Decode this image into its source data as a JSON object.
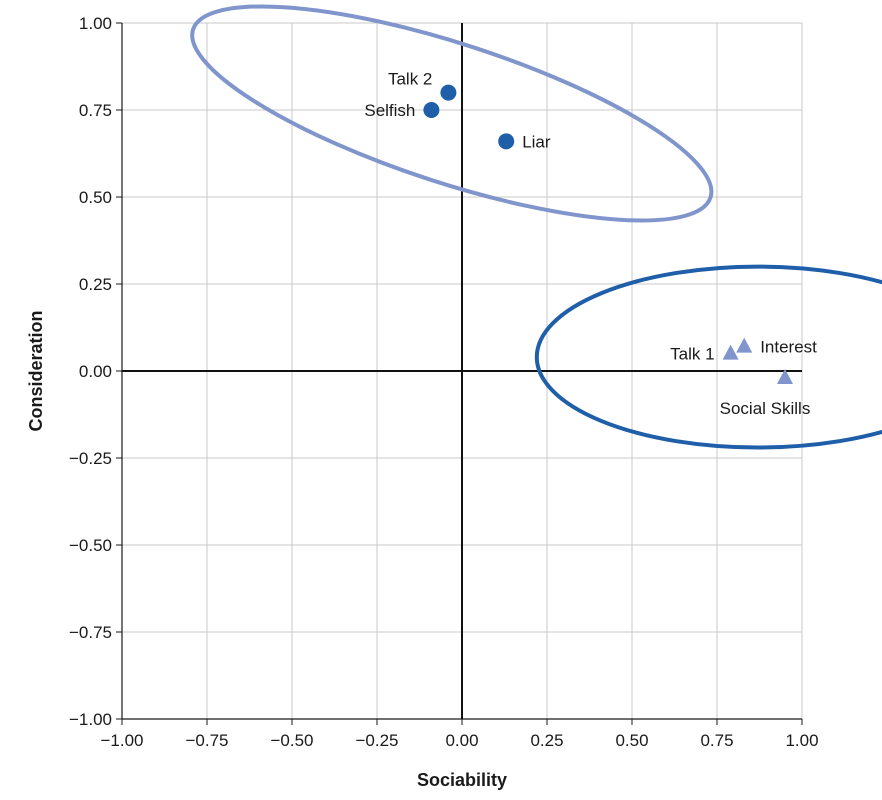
{
  "chart_data": {
    "type": "scatter",
    "title": "",
    "xlabel": "Sociability",
    "ylabel": "Consideration",
    "xlim": [
      -1.0,
      1.0
    ],
    "ylim": [
      -1.0,
      1.0
    ],
    "grid": true,
    "xticks": [
      -1.0,
      -0.75,
      -0.5,
      -0.25,
      0.0,
      0.25,
      0.5,
      0.75,
      1.0
    ],
    "yticks": [
      -1.0,
      -0.75,
      -0.5,
      -0.25,
      0.0,
      0.25,
      0.5,
      0.75,
      1.0
    ],
    "xtick_labels": [
      "−1.00",
      "−0.75",
      "−0.50",
      "−0.25",
      "0.00",
      "0.25",
      "0.50",
      "0.75",
      "1.00"
    ],
    "ytick_labels": [
      "−1.00",
      "−0.75",
      "−0.50",
      "−0.25",
      "0.00",
      "0.25",
      "0.50",
      "0.75",
      "1.00"
    ],
    "series": [
      {
        "name": "cluster-consideration",
        "marker": "circle",
        "color": "#1f5ea8",
        "points": [
          {
            "label": "Talk 2",
            "x": -0.04,
            "y": 0.8,
            "label_side": "upper-left"
          },
          {
            "label": "Selfish",
            "x": -0.09,
            "y": 0.75,
            "label_side": "left"
          },
          {
            "label": "Liar",
            "x": 0.13,
            "y": 0.66,
            "label_side": "right"
          }
        ]
      },
      {
        "name": "cluster-sociability",
        "marker": "triangle",
        "color": "#7f95cc",
        "points": [
          {
            "label": "Talk 1",
            "x": 0.79,
            "y": 0.05,
            "label_side": "left"
          },
          {
            "label": "Interest",
            "x": 0.83,
            "y": 0.07,
            "label_side": "right"
          },
          {
            "label": "Social Skills",
            "x": 0.95,
            "y": -0.02,
            "label_side": "below"
          }
        ]
      }
    ],
    "ellipses": [
      {
        "name": "consideration-cluster-ellipse",
        "color": "#7f95cc",
        "cx": -0.03,
        "cy": 0.74,
        "rx": 0.8,
        "ry": 0.2
      },
      {
        "name": "sociability-cluster-ellipse",
        "color": "#1f5ea8",
        "cx": 0.87,
        "cy": 0.04,
        "rx": 0.65,
        "ry": 0.26
      }
    ]
  }
}
